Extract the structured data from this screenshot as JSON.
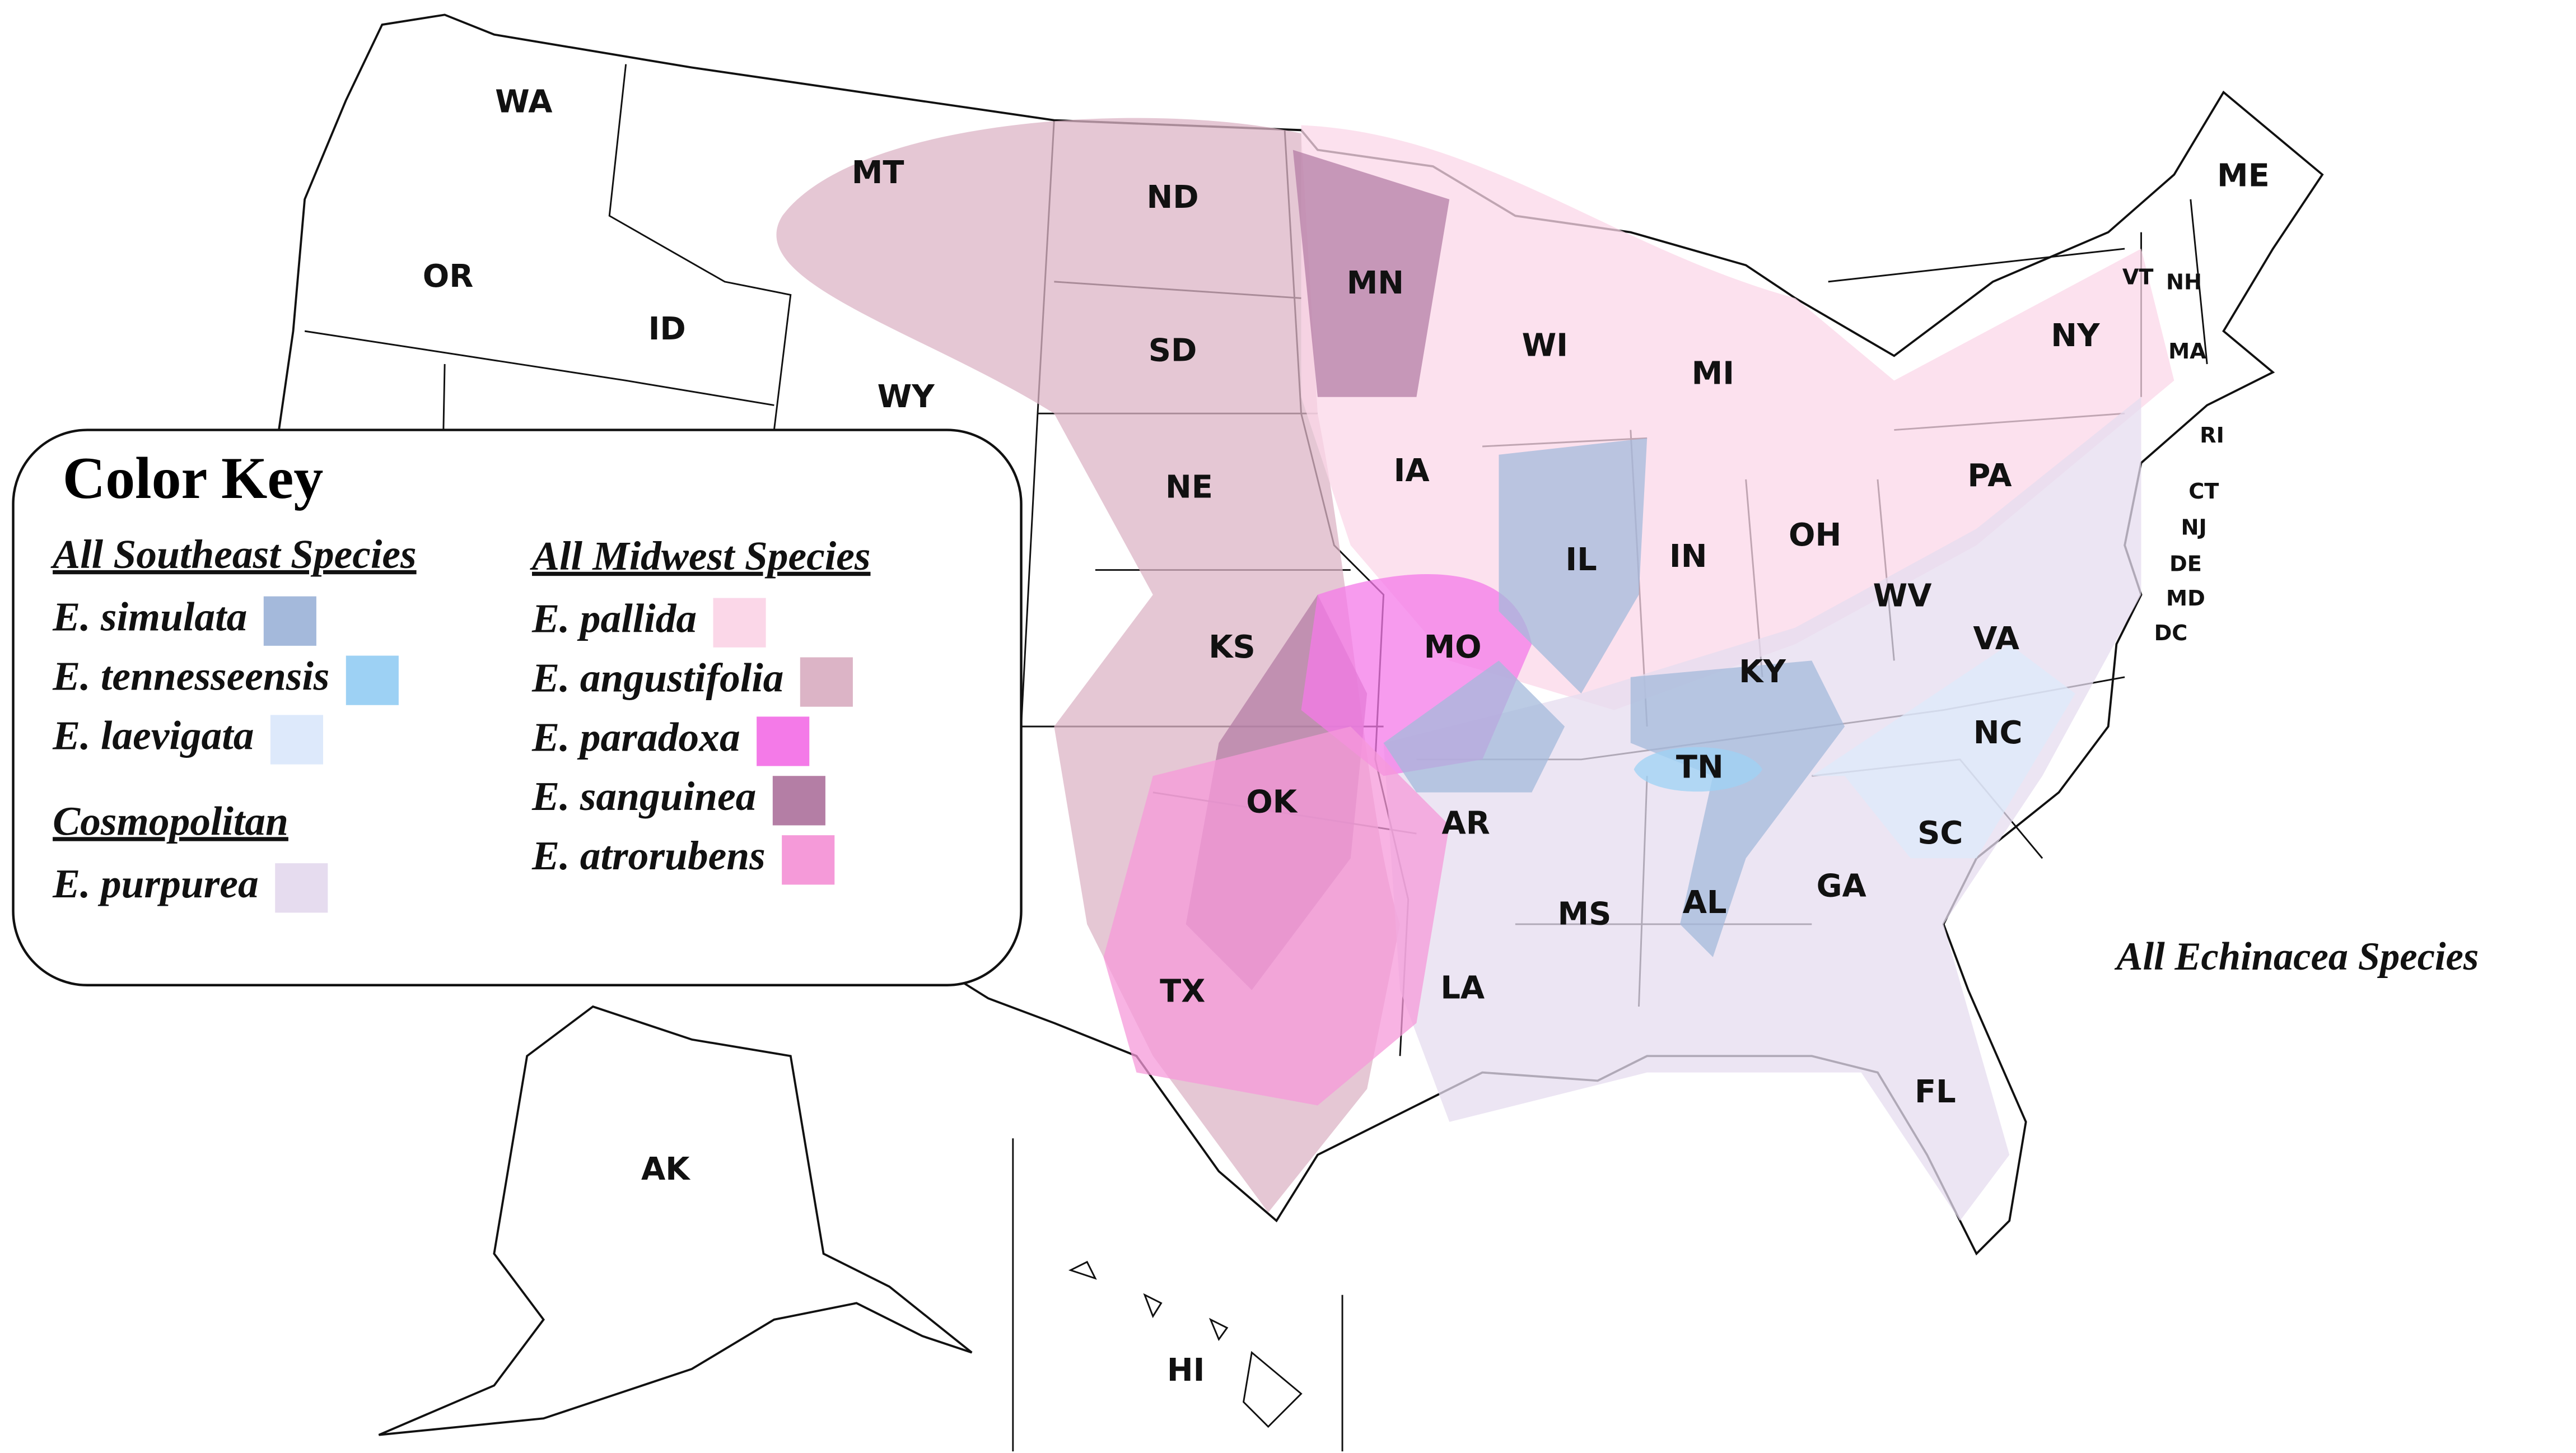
{
  "title": "All Echinacea Species",
  "legend": {
    "title": "Color Key",
    "groups": [
      {
        "title": "All Southeast Species",
        "entries": [
          {
            "name": "E. simulata",
            "color": "#a4b9db"
          },
          {
            "name": "E. tennesseensis",
            "color": "#9dd1f4"
          },
          {
            "name": "E. laevigata",
            "color": "#dde9fb"
          }
        ]
      },
      {
        "title": "Cosmopolitan",
        "entries": [
          {
            "name": "E. purpurea",
            "color": "#e6dcef"
          }
        ]
      },
      {
        "title": "All Midwest Species",
        "entries": [
          {
            "name": "E. pallida",
            "color": "#fbd7e8"
          },
          {
            "name": "E. angustifolia",
            "color": "#dcb4c6"
          },
          {
            "name": "E. paradoxa",
            "color": "#f47ae8"
          },
          {
            "name": "E. sanguinea",
            "color": "#b47ea5"
          },
          {
            "name": "E. atrorubens",
            "color": "#f59ad9"
          }
        ]
      }
    ]
  },
  "states": [
    "WA",
    "OR",
    "ID",
    "MT",
    "WY",
    "ND",
    "SD",
    "NE",
    "KS",
    "OK",
    "TX",
    "MN",
    "IA",
    "MO",
    "AR",
    "LA",
    "WI",
    "IL",
    "MI",
    "IN",
    "OH",
    "KY",
    "TN",
    "MS",
    "AL",
    "GA",
    "FL",
    "SC",
    "NC",
    "VA",
    "WV",
    "PA",
    "NY",
    "VT",
    "NH",
    "ME",
    "MA",
    "RI",
    "CT",
    "NJ",
    "DE",
    "MD",
    "DC",
    "AK",
    "HI"
  ]
}
